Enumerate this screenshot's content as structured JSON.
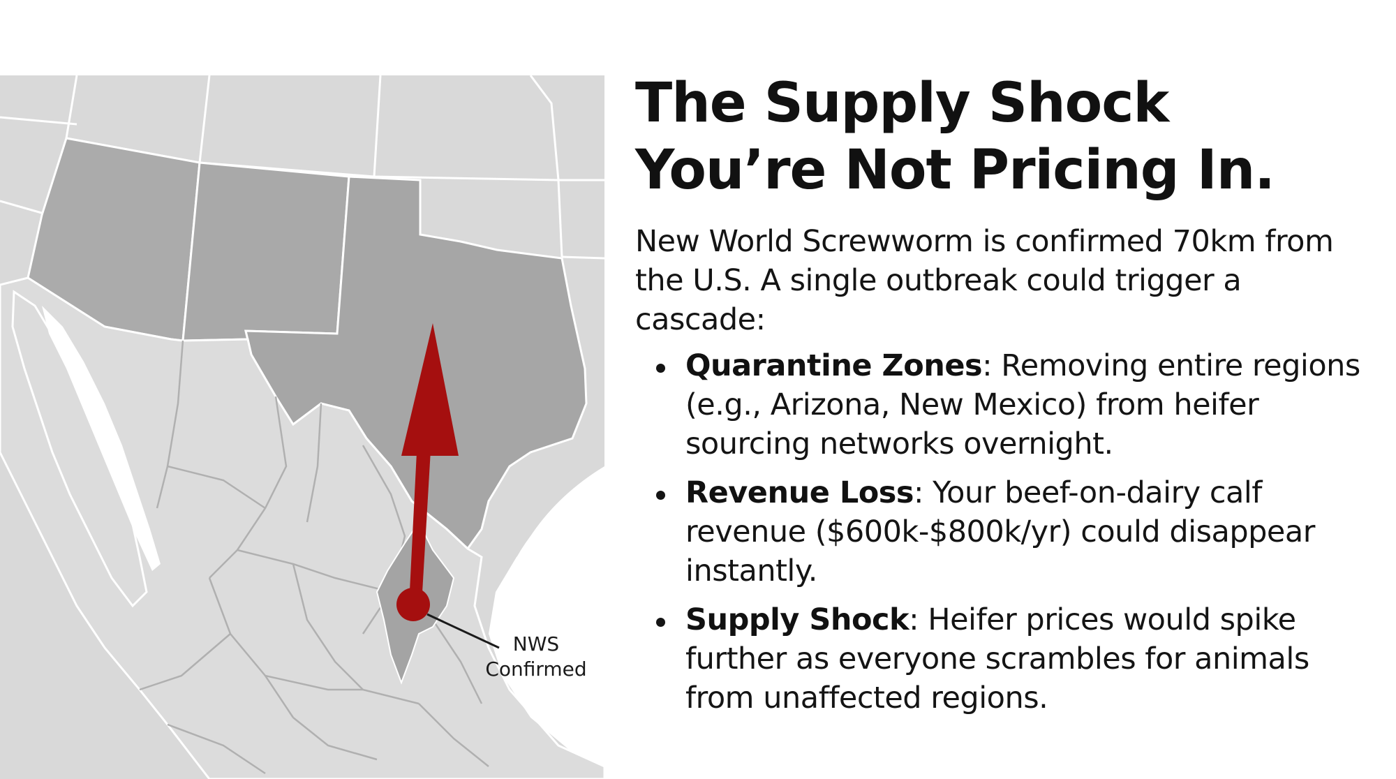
{
  "slide": {
    "title_line1": "The Supply Shock",
    "title_line2": "You’re Not Pricing In.",
    "intro": "New World Screwworm is confirmed 70km from the U.S. A single outbreak could trigger a cascade:",
    "bullets": [
      {
        "term": "Quarantine Zones",
        "text": ": Removing entire regions (e.g., Arizona, New Mexico) from heifer sourcing networks overnight."
      },
      {
        "term": "Revenue Loss",
        "text": ": Your beef-on-dairy calf revenue ($600k-$800k/yr) could disappear instantly."
      },
      {
        "term": "Supply Shock",
        "text": ": Heifer prices would spike further as everyone scrambles for animals from unaffected regions."
      }
    ]
  },
  "map": {
    "label_line1": "NWS",
    "label_line2": "Confirmed",
    "colors": {
      "background": "#d6d6d6",
      "states_highlight": "#aaaaaa",
      "mexico_land": "#dedede",
      "border_lines": "#ffffff",
      "marker": "#a50f0f",
      "water": "#ffffff"
    }
  }
}
